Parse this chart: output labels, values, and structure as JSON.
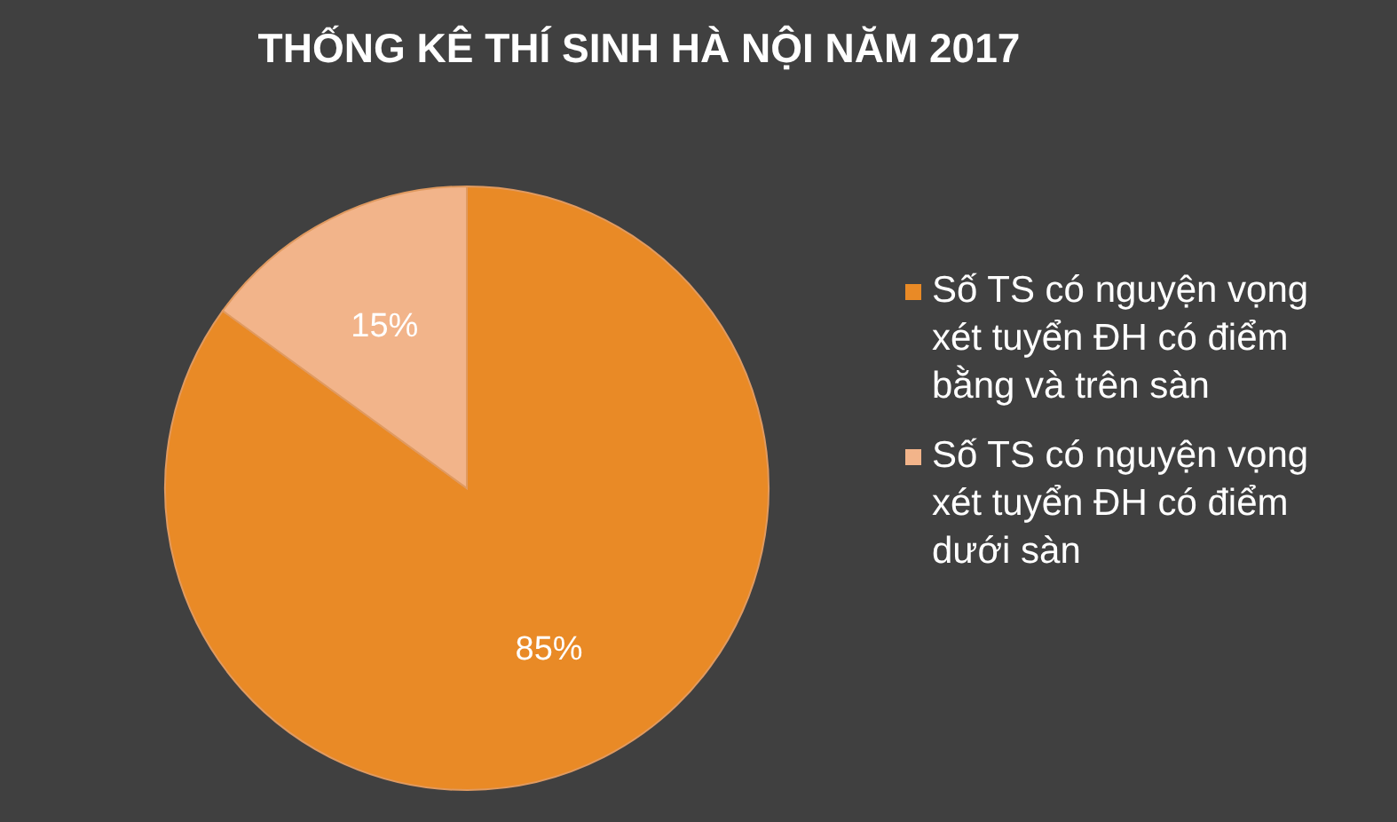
{
  "chart_data": {
    "type": "pie",
    "title": "THỐNG KÊ THÍ SINH HÀ NỘI NĂM 2017",
    "categories": [
      "Số TS có nguyện vọng xét tuyển ĐH có điểm bằng và trên sàn",
      "Số TS có nguyện vọng xét tuyển ĐH có điểm dưới sàn"
    ],
    "values": [
      85,
      15
    ],
    "colors": [
      "#e98a26",
      "#f2b48a"
    ],
    "value_labels": [
      "85%",
      "15%"
    ],
    "legend": "right"
  }
}
